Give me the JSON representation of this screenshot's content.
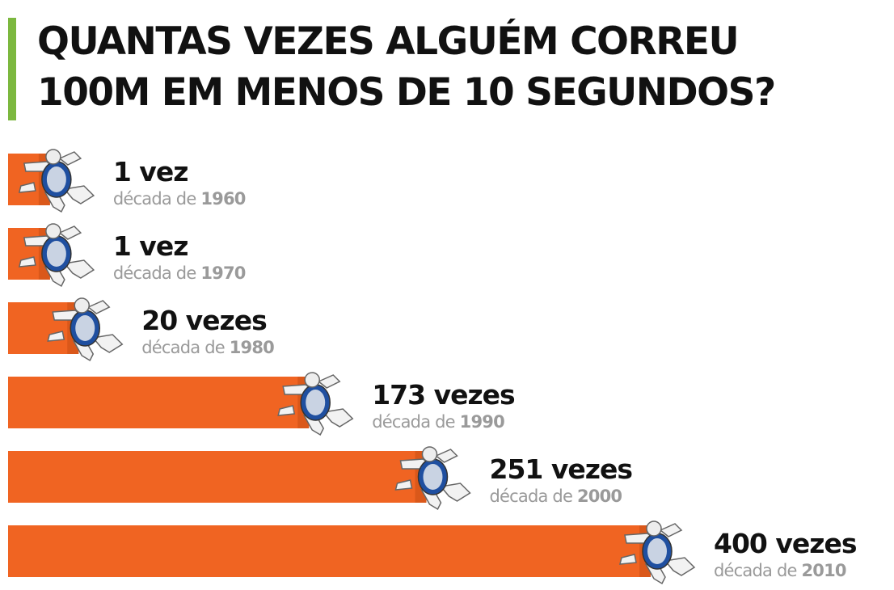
{
  "title_lines": [
    "QUANTAS VEZES ALGUÉM CORREU",
    "100M EM MENOS DE 10 SEGUNDOS?"
  ],
  "colors": {
    "accent": "#7cb83f",
    "bar": "#f06422",
    "runner_shirt": "#1f4fa0"
  },
  "chart_data": {
    "type": "bar",
    "orientation": "horizontal",
    "title": "QUANTAS VEZES ALGUÉM CORREU 100M EM MENOS DE 10 SEGUNDOS?",
    "categories": [
      "1960",
      "1970",
      "1980",
      "1990",
      "2000",
      "2010"
    ],
    "values": [
      1,
      1,
      20,
      173,
      251,
      400
    ],
    "value_labels": [
      "1 vez",
      "1 vez",
      "20 vezes",
      "173 vezes",
      "251 vezes",
      "400 vezes"
    ],
    "category_prefix": "década de ",
    "grid": false,
    "legend": "none",
    "icon": "runner-icon"
  }
}
